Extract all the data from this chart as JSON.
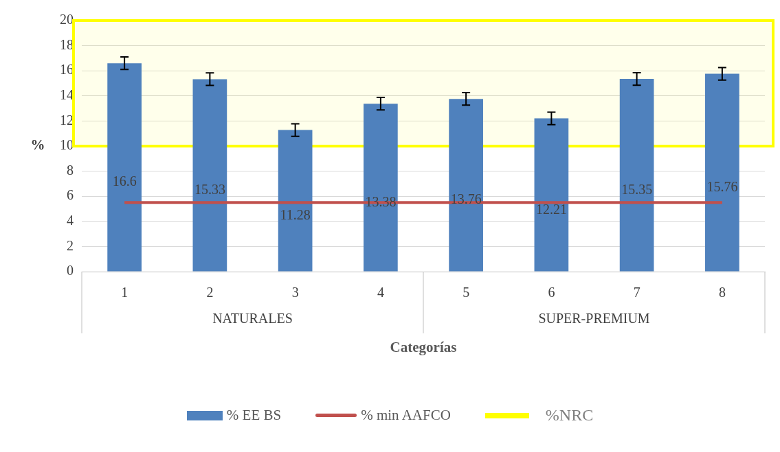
{
  "chart_data": {
    "type": "bar",
    "xlabel": "Categorías",
    "ylabel": "%",
    "categories": [
      "1",
      "2",
      "3",
      "4",
      "5",
      "6",
      "7",
      "8"
    ],
    "series": [
      {
        "name": "% EE BS",
        "color": "#4f81bd",
        "values": [
          16.6,
          15.33,
          11.28,
          13.38,
          13.76,
          12.21,
          15.35,
          15.76
        ],
        "value_labels": [
          "16.6",
          "15.33",
          "11.28",
          "13.38",
          "13.76",
          "12.21",
          "15.35",
          "15.76"
        ],
        "errors": [
          0.5,
          0.5,
          0.5,
          0.5,
          0.5,
          0.5,
          0.5,
          0.5
        ]
      },
      {
        "name": "% min AAFCO",
        "type": "line",
        "color": "#c0504d",
        "values": [
          5.5,
          5.5,
          5.5,
          5.5,
          5.5,
          5.5,
          5.5,
          5.5
        ]
      }
    ],
    "bands": [
      {
        "axis": "y",
        "from": 10,
        "to": 20,
        "label": "%NRC",
        "color": "#ffff00"
      }
    ],
    "annotations": [
      "NATURALES",
      "SUPER-PREMIUM"
    ],
    "ylim": [
      0,
      20
    ],
    "yticks": [
      0,
      2,
      4,
      6,
      8,
      10,
      12,
      14,
      16,
      18,
      20
    ],
    "grid": "y",
    "legend": "bottom",
    "marker": "none"
  }
}
